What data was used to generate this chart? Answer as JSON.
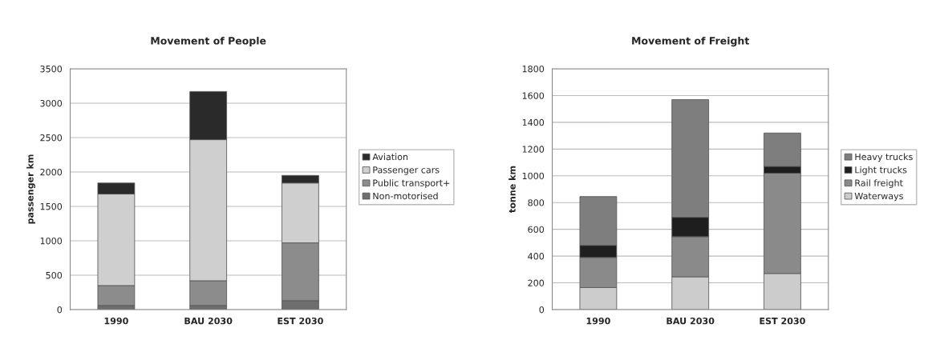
{
  "chart_data": [
    {
      "type": "bar",
      "title": "Movement of People",
      "ylabel": "passenger km",
      "categories": [
        "1990",
        "BAU 2030",
        "EST 2030"
      ],
      "stacked": true,
      "ylim": [
        0,
        3500
      ],
      "yticks": [
        0,
        500,
        1000,
        1500,
        2000,
        2500,
        3000,
        3500
      ],
      "grid": "y",
      "legend": "right",
      "series": [
        {
          "name": "Non-motorised",
          "color": "#6e6e6e",
          "values": [
            60,
            60,
            130
          ]
        },
        {
          "name": "Public transport+",
          "color": "#8c8c8c",
          "values": [
            290,
            360,
            840
          ]
        },
        {
          "name": "Passenger cars",
          "color": "#cfcfcf",
          "values": [
            1330,
            2050,
            870
          ]
        },
        {
          "name": "Aviation",
          "color": "#2a2a2a",
          "values": [
            160,
            700,
            110
          ]
        }
      ]
    },
    {
      "type": "bar",
      "title": "Movement of Freight",
      "ylabel": "tonne km",
      "categories": [
        "1990",
        "BAU 2030",
        "EST 2030"
      ],
      "stacked": true,
      "ylim": [
        0,
        1800
      ],
      "yticks": [
        0,
        200,
        400,
        600,
        800,
        1000,
        1200,
        1400,
        1600,
        1800
      ],
      "grid": "y",
      "legend": "right",
      "series": [
        {
          "name": "Waterways",
          "color": "#cccccc",
          "values": [
            165,
            245,
            270
          ]
        },
        {
          "name": "Rail freight",
          "color": "#8a8a8a",
          "values": [
            225,
            300,
            750
          ]
        },
        {
          "name": "Light trucks",
          "color": "#1e1e1e",
          "values": [
            90,
            145,
            50
          ]
        },
        {
          "name": "Heavy trucks",
          "color": "#7e7e7e",
          "values": [
            365,
            880,
            250
          ]
        }
      ]
    }
  ]
}
